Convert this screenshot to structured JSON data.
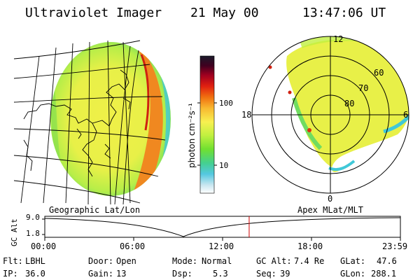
{
  "header": {
    "instrument": "Ultraviolet Imager",
    "date": "21 May 00",
    "time": "13:47:06 UT"
  },
  "colorbar": {
    "unit_label": "photon cm⁻²s⁻¹",
    "tick_100": "100",
    "tick_10": "10",
    "colors": [
      "#ffffff",
      "#c8e6f0",
      "#54c8e0",
      "#44d090",
      "#70e030",
      "#c0f040",
      "#f8f050",
      "#f8b830",
      "#f07010",
      "#e02010",
      "#a00020",
      "#400020",
      "#1a1a2a"
    ]
  },
  "polar_plot": {
    "lat_labels": [
      "60",
      "70",
      "80"
    ],
    "mlt_labels": [
      "12",
      "18",
      "6",
      "0"
    ]
  },
  "timeline": {
    "y_axis_label": "GC Alt",
    "y_ticks": [
      "9.0",
      "1.8"
    ],
    "left_title": "Geographic Lat/Lon",
    "right_title": "Apex MLat/MLT",
    "x_ticks": [
      "00:00",
      "06:00",
      "12:00",
      "18:00",
      "23:59"
    ],
    "marker_time": "13:47",
    "marker_color": "#d00000"
  },
  "status": {
    "flt_label": "Flt:",
    "flt_value": "LBHL",
    "ip_label": "IP:",
    "ip_value": "36.0",
    "door_label": "Door:",
    "door_value": "Open",
    "gain_label": "Gain:",
    "gain_value": "13",
    "mode_label": "Mode:",
    "mode_value": "Normal",
    "dsp_label": "Dsp:",
    "dsp_value": "5.3",
    "gcalt_label": "GC Alt:",
    "gcalt_value": "7.4 Re",
    "seq_label": "Seq:",
    "seq_value": "39",
    "glat_label": "GLat:",
    "glat_value": "47.6",
    "glon_label": "GLon:",
    "glon_value": "288.1"
  }
}
